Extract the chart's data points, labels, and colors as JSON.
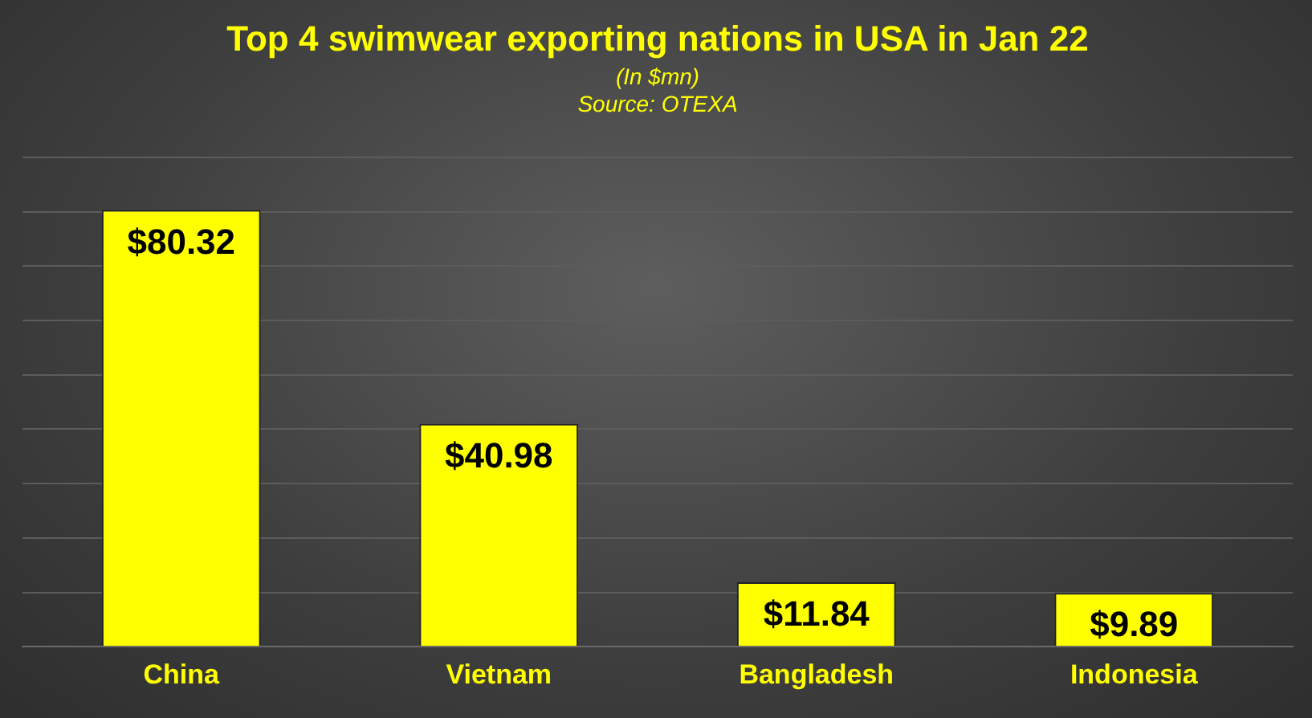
{
  "chart_data": {
    "type": "bar",
    "title": "Top 4 swimwear exporting nations in USA in Jan 22",
    "subtitle": "(In $mn)",
    "annotations": [
      "Source: OTEXA"
    ],
    "categories": [
      "China",
      "Vietnam",
      "Bangladesh",
      "Indonesia"
    ],
    "values": [
      80.32,
      40.98,
      11.84,
      9.89
    ],
    "color": "#ffff00",
    "value_labels": [
      "$80.32",
      "$40.98",
      "$11.84",
      "$9.89"
    ],
    "ylim": [
      0,
      90
    ],
    "yticks": [
      {
        "value": 0,
        "label": null
      },
      {
        "value": 10,
        "label": null
      },
      {
        "value": 20,
        "label": null
      },
      {
        "value": 30,
        "label": null
      },
      {
        "value": 40,
        "label": null
      },
      {
        "value": 50,
        "label": null
      },
      {
        "value": 60,
        "label": null
      },
      {
        "value": 70,
        "label": null
      },
      {
        "value": 80,
        "label": null
      },
      {
        "value": 90,
        "label": null
      }
    ],
    "grid": "y",
    "tick_labels": "x",
    "legend": false
  }
}
